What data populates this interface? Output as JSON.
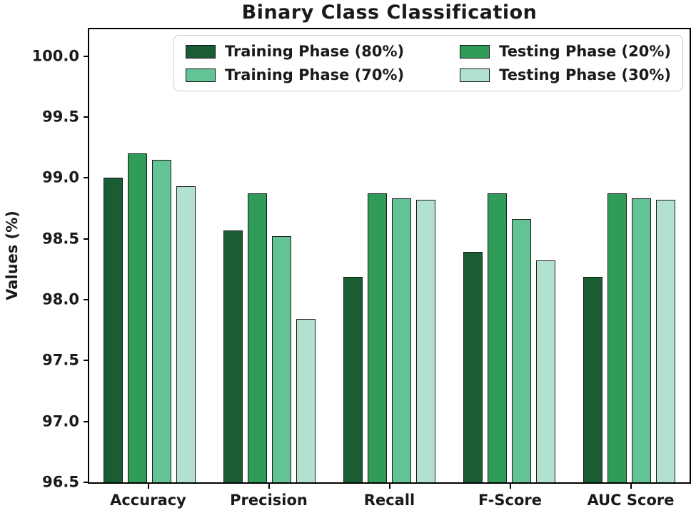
{
  "chart_data": {
    "type": "bar",
    "title": "Binary Class Classification",
    "xlabel": "",
    "ylabel": "Values (%)",
    "categories": [
      "Accuracy",
      "Precision",
      "Recall",
      "F-Score",
      "AUC Score"
    ],
    "series": [
      {
        "name": "Training Phase (80%)",
        "color": "#1a5c34",
        "values": [
          99.0,
          98.57,
          98.19,
          98.39,
          98.19
        ]
      },
      {
        "name": "Testing Phase (20%)",
        "color": "#2f9c59",
        "values": [
          99.2,
          98.87,
          98.87,
          98.87,
          98.87
        ]
      },
      {
        "name": "Training Phase (70%)",
        "color": "#62c494",
        "values": [
          99.15,
          98.52,
          98.83,
          98.66,
          98.83
        ]
      },
      {
        "name": "Testing Phase (30%)",
        "color": "#b2e2cf",
        "values": [
          98.93,
          97.84,
          98.82,
          98.32,
          98.82
        ]
      }
    ],
    "ylim": [
      96.5,
      100.22
    ],
    "yticks": [
      100.0,
      99.5,
      99.0,
      98.5,
      98.0,
      97.5,
      97.0,
      96.5
    ],
    "grid": false,
    "legend_position": "upper right",
    "legend_column_order": [
      0,
      2,
      1,
      3
    ],
    "bar_edge_color": "#1a1a1a",
    "axis_color": "#000000"
  }
}
